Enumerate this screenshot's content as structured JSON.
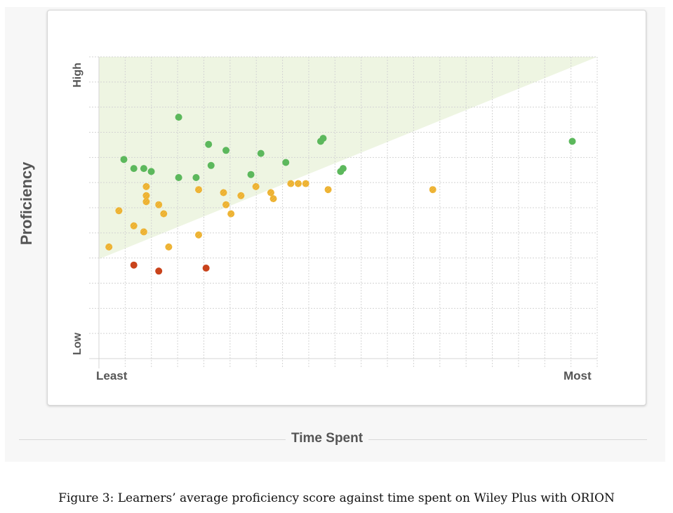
{
  "chart_data": {
    "type": "scatter",
    "title": "",
    "xlabel": "Time Spent",
    "ylabel": "Proficiency",
    "xlim": [
      0,
      100
    ],
    "ylim": [
      0,
      100
    ],
    "x_tick_labels": [
      "Least",
      "Most"
    ],
    "y_tick_labels": [
      "Low",
      "High"
    ],
    "grid": true,
    "shaded_region": {
      "description_color": "#eef5e2",
      "line_start": [
        0,
        33
      ],
      "line_end": [
        100,
        100
      ]
    },
    "colors": {
      "green": "#5cb85c",
      "yellow": "#f0b93a",
      "red": "#c9431b"
    },
    "series": [
      {
        "color": "green",
        "points": [
          [
            16,
            80
          ],
          [
            22,
            71
          ],
          [
            5,
            66
          ],
          [
            7,
            63
          ],
          [
            9,
            63
          ],
          [
            10.5,
            62
          ],
          [
            16,
            60
          ],
          [
            19.5,
            60
          ],
          [
            22.5,
            64
          ],
          [
            25.5,
            69
          ],
          [
            30.5,
            61
          ],
          [
            32.5,
            68
          ],
          [
            37.5,
            65
          ],
          [
            44.5,
            72
          ],
          [
            48.5,
            62
          ],
          [
            49,
            63
          ],
          [
            45,
            73
          ],
          [
            95,
            72
          ]
        ]
      },
      {
        "color": "yellow",
        "points": [
          [
            2,
            37
          ],
          [
            4,
            49
          ],
          [
            7,
            44
          ],
          [
            9,
            42
          ],
          [
            9.5,
            57
          ],
          [
            9.5,
            54
          ],
          [
            9.5,
            52
          ],
          [
            12,
            51
          ],
          [
            13,
            48
          ],
          [
            14,
            37
          ],
          [
            20,
            56
          ],
          [
            20,
            41
          ],
          [
            25,
            55
          ],
          [
            25.5,
            51
          ],
          [
            26.5,
            48
          ],
          [
            28.5,
            54
          ],
          [
            31.5,
            57
          ],
          [
            34.5,
            55
          ],
          [
            35,
            53
          ],
          [
            38.5,
            58
          ],
          [
            40,
            58
          ],
          [
            41.5,
            58
          ],
          [
            46,
            56
          ],
          [
            67,
            56
          ]
        ]
      },
      {
        "color": "red",
        "points": [
          [
            7,
            31
          ],
          [
            12,
            29
          ],
          [
            21.5,
            30
          ]
        ]
      }
    ]
  },
  "caption": "Figure 3: Learners’ average proficiency score against time spent on Wiley Plus with ORION"
}
